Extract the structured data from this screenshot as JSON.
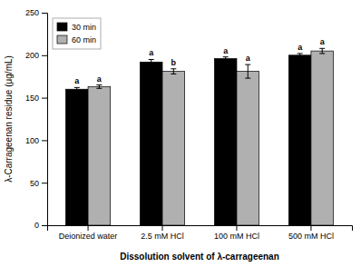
{
  "chart_data": {
    "type": "bar",
    "categories": [
      "Deionized water",
      "2.5 mM HCl",
      "100 mM HCl",
      "500 mM HCl"
    ],
    "series": [
      {
        "name": "30 min",
        "color": "#000000",
        "values": [
          160,
          192,
          196,
          200
        ],
        "errors": [
          2,
          3,
          2,
          2
        ],
        "letters": [
          "a",
          "a",
          "a",
          "a"
        ]
      },
      {
        "name": "60 min",
        "color": "#b0b0b0",
        "values": [
          163,
          181,
          181,
          205
        ],
        "errors": [
          2,
          3,
          8,
          3
        ],
        "letters": [
          "a",
          "b",
          "a",
          "a"
        ]
      }
    ],
    "xlabel": "Dissolution solvent of λ-carrageenan",
    "ylabel": "λ-Carrageenan residue (μg/mL)",
    "ylim": [
      0,
      250
    ],
    "yticks": [
      0,
      50,
      100,
      150,
      200,
      250
    ],
    "grid": false,
    "legend": "upper left"
  }
}
